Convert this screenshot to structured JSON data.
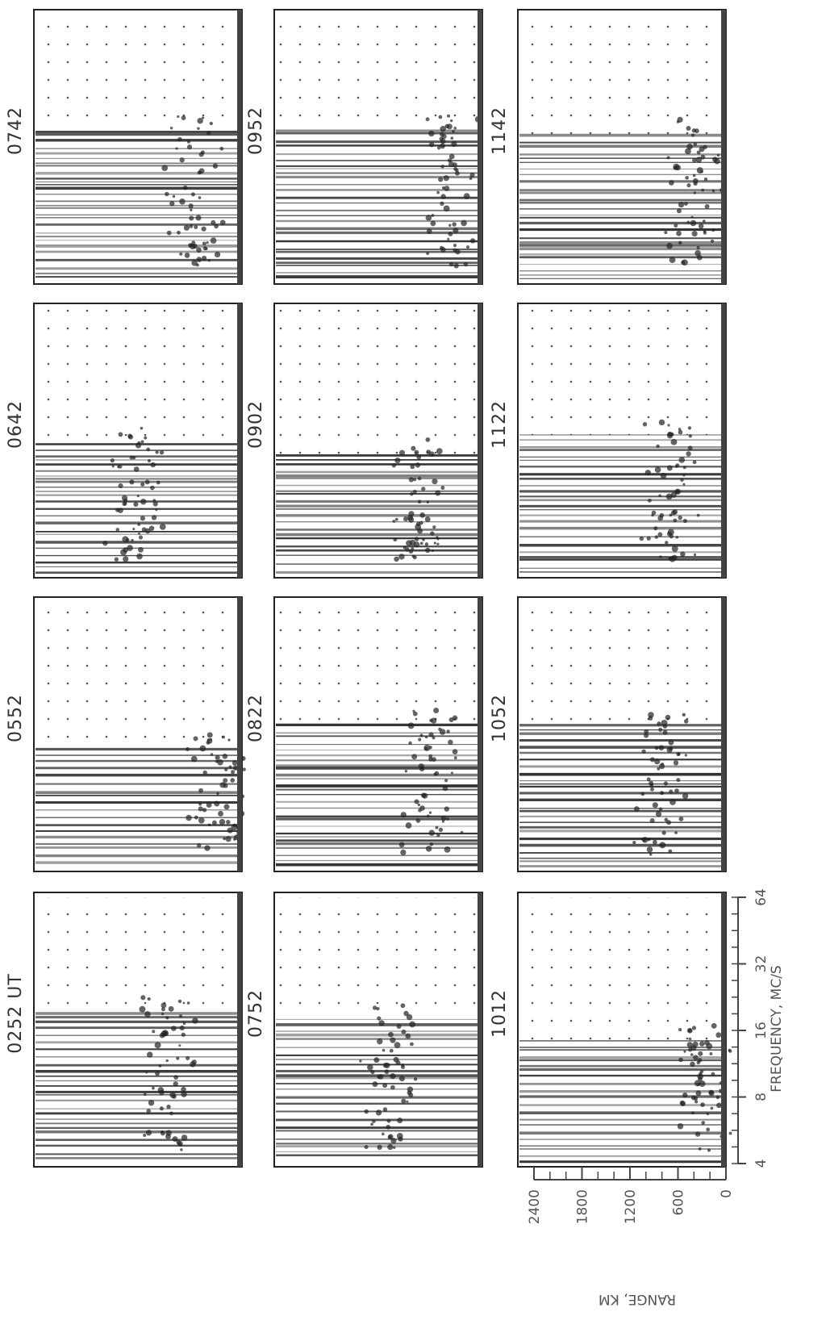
{
  "panels": [
    {
      "label": "0252 UT"
    },
    {
      "label": "0552"
    },
    {
      "label": "0642"
    },
    {
      "label": "0742"
    },
    {
      "label": "0752"
    },
    {
      "label": "0822"
    },
    {
      "label": "0902"
    },
    {
      "label": "0952"
    },
    {
      "label": "1012"
    },
    {
      "label": "1052"
    },
    {
      "label": "1122"
    },
    {
      "label": "1142"
    }
  ],
  "range_axis": {
    "label": "RANGE, KM",
    "ticks": [
      2400,
      1800,
      1200,
      600,
      0
    ]
  },
  "frequency_axis": {
    "label": "FREQUENCY, MC/S",
    "ticks": [
      4,
      8,
      16,
      32,
      64
    ]
  }
}
